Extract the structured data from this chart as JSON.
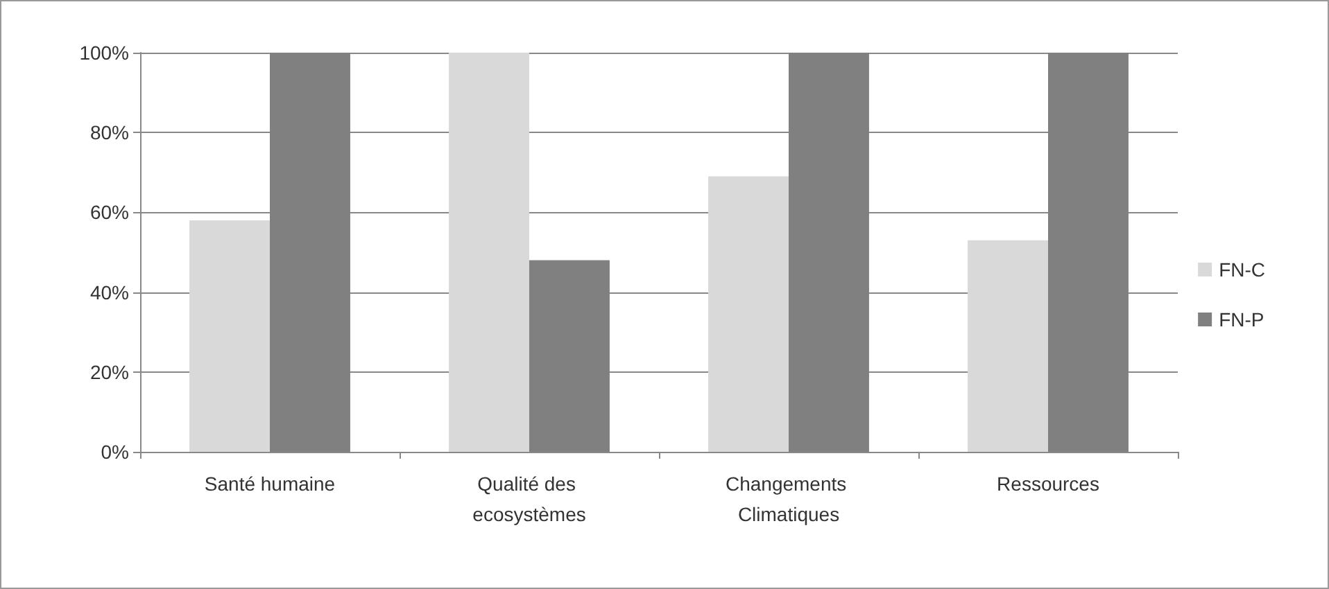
{
  "chart_data": {
    "type": "bar",
    "categories": [
      "Santé humaine",
      "Qualité des ecosystèmes",
      "Changements Climatiques",
      "Ressources"
    ],
    "series": [
      {
        "name": "FN-C",
        "color": "#d9d9d9",
        "values": [
          58,
          100,
          69,
          53
        ]
      },
      {
        "name": "FN-P",
        "color": "#808080",
        "values": [
          100,
          48,
          100,
          100
        ]
      }
    ],
    "ylim": [
      0,
      100
    ],
    "yticks": [
      {
        "value": 0,
        "label": "0%"
      },
      {
        "value": 20,
        "label": "20%"
      },
      {
        "value": 40,
        "label": "40%"
      },
      {
        "value": 60,
        "label": "60%"
      },
      {
        "value": 80,
        "label": "80%"
      },
      {
        "value": 100,
        "label": "100%"
      }
    ],
    "grid": "y",
    "legend": "right"
  }
}
